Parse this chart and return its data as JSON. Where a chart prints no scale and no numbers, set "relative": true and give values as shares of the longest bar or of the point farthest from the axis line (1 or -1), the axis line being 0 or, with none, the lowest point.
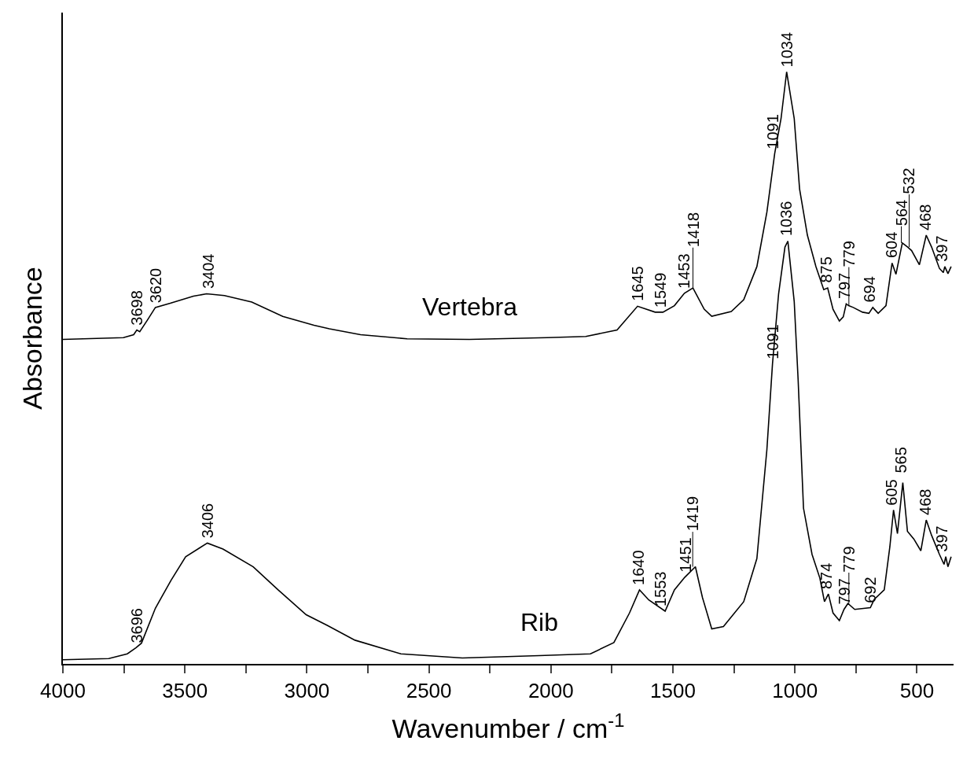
{
  "chart_data": {
    "type": "line",
    "relative": true,
    "xlabel": "Wavenumber / cm$^{-1}$",
    "ylabel": "Absorbance",
    "marker": "none",
    "line_style": "solid",
    "xlim": [
      4000,
      350
    ],
    "xticks": [
      4000,
      {
        "value": 3750,
        "label": null
      },
      3500,
      {
        "value": 3250,
        "label": null
      },
      3000,
      {
        "value": 2750,
        "label": null
      },
      2500,
      {
        "value": 2250,
        "label": null
      },
      2000,
      {
        "value": 1750,
        "label": null
      },
      1500,
      {
        "value": 1250,
        "label": null
      },
      1000,
      {
        "value": 750,
        "label": null
      },
      500
    ],
    "series": [
      {
        "name": "Vertebra",
        "color": "#000000",
        "x": [
          4000,
          3752,
          3710,
          3697,
          3685,
          3653,
          3621,
          3560,
          3465,
          3411,
          3338,
          3226,
          3099,
          2971,
          2908,
          2780,
          2589,
          2334,
          2016,
          1857,
          1729,
          1645,
          1573,
          1541,
          1494,
          1453,
          1418,
          1372,
          1341,
          1261,
          1210,
          1156,
          1115,
          1083,
          1057,
          1034,
          1003,
          981,
          949,
          914,
          882,
          866,
          844,
          818,
          802,
          790,
          780,
          761,
          723,
          697,
          681,
          659,
          627,
          611,
          602,
          586,
          560,
          538,
          522,
          490,
          462,
          440,
          408,
          392,
          386,
          373,
          360
        ],
        "values": [
          0.548,
          0.551,
          0.556,
          0.564,
          0.561,
          0.581,
          0.602,
          0.609,
          0.621,
          0.625,
          0.622,
          0.611,
          0.587,
          0.572,
          0.566,
          0.556,
          0.549,
          0.548,
          0.551,
          0.553,
          0.564,
          0.604,
          0.594,
          0.594,
          0.605,
          0.626,
          0.635,
          0.599,
          0.587,
          0.595,
          0.615,
          0.671,
          0.763,
          0.862,
          0.921,
          1.0,
          0.921,
          0.802,
          0.724,
          0.671,
          0.632,
          0.635,
          0.599,
          0.579,
          0.586,
          0.608,
          0.605,
          0.602,
          0.594,
          0.592,
          0.602,
          0.592,
          0.605,
          0.651,
          0.677,
          0.658,
          0.711,
          0.704,
          0.698,
          0.674,
          0.724,
          0.704,
          0.668,
          0.661,
          0.671,
          0.659,
          0.671
        ]
      },
      {
        "name": "Rib",
        "color": "#000000",
        "x": [
          4000,
          3812,
          3736,
          3701,
          3678,
          3621,
          3557,
          3497,
          3408,
          3344,
          3220,
          3118,
          3003,
          2917,
          2803,
          2615,
          2363,
          2048,
          1838,
          1742,
          1678,
          1637,
          1599,
          1532,
          1494,
          1452,
          1408,
          1379,
          1341,
          1293,
          1210,
          1156,
          1115,
          1092,
          1067,
          1041,
          1029,
          1003,
          987,
          965,
          930,
          898,
          879,
          863,
          844,
          818,
          799,
          783,
          755,
          691,
          675,
          634,
          611,
          596,
          580,
          558,
          539,
          513,
          484,
          462,
          440,
          408,
          389,
          382,
          373,
          360
        ],
        "values": [
          0.007,
          0.009,
          0.017,
          0.027,
          0.035,
          0.094,
          0.141,
          0.181,
          0.204,
          0.194,
          0.164,
          0.125,
          0.083,
          0.065,
          0.04,
          0.017,
          0.01,
          0.014,
          0.017,
          0.036,
          0.086,
          0.125,
          0.108,
          0.089,
          0.125,
          0.146,
          0.164,
          0.112,
          0.059,
          0.063,
          0.105,
          0.178,
          0.362,
          0.507,
          0.625,
          0.704,
          0.714,
          0.612,
          0.48,
          0.263,
          0.185,
          0.145,
          0.105,
          0.118,
          0.086,
          0.073,
          0.092,
          0.102,
          0.092,
          0.095,
          0.109,
          0.125,
          0.198,
          0.26,
          0.22,
          0.306,
          0.224,
          0.211,
          0.191,
          0.243,
          0.217,
          0.185,
          0.168,
          0.181,
          0.164,
          0.181
        ]
      }
    ],
    "annotations": [
      {
        "text": "3698",
        "x": 3698,
        "y": 0.564
      },
      {
        "text": "3620",
        "x": 3620,
        "y": 0.602
      },
      {
        "text": "3404",
        "x": 3404,
        "y": 0.625
      },
      {
        "text": "1645",
        "x": 1645,
        "y": 0.604
      },
      {
        "text": "1549",
        "x": 1549,
        "y": 0.594
      },
      {
        "text": "1453",
        "x": 1453,
        "y": 0.626
      },
      {
        "text": "1418",
        "x": 1418,
        "y": 0.635
      },
      {
        "text": "1091",
        "x": 1091,
        "y": 0.862
      },
      {
        "text": "1034",
        "x": 1034,
        "y": 1.0
      },
      {
        "text": "875",
        "x": 875,
        "y": 0.635
      },
      {
        "text": "797",
        "x": 797,
        "y": 0.608
      },
      {
        "text": "779",
        "x": 779,
        "y": 0.605
      },
      {
        "text": "694",
        "x": 694,
        "y": 0.602
      },
      {
        "text": "604",
        "x": 604,
        "y": 0.677
      },
      {
        "text": "564",
        "x": 564,
        "y": 0.711
      },
      {
        "text": "532",
        "x": 532,
        "y": 0.704
      },
      {
        "text": "468",
        "x": 468,
        "y": 0.724
      },
      {
        "text": "397",
        "x": 397,
        "y": 0.671
      },
      {
        "text": "3696",
        "x": 3696,
        "y": 0.027
      },
      {
        "text": "3406",
        "x": 3406,
        "y": 0.204
      },
      {
        "text": "1640",
        "x": 1640,
        "y": 0.125
      },
      {
        "text": "1553",
        "x": 1553,
        "y": 0.089
      },
      {
        "text": "1451",
        "x": 1451,
        "y": 0.146
      },
      {
        "text": "1419",
        "x": 1419,
        "y": 0.164
      },
      {
        "text": "1091",
        "x": 1091,
        "y": 0.507
      },
      {
        "text": "1036",
        "x": 1036,
        "y": 0.714
      },
      {
        "text": "874",
        "x": 874,
        "y": 0.118
      },
      {
        "text": "797",
        "x": 797,
        "y": 0.092
      },
      {
        "text": "779",
        "x": 779,
        "y": 0.102
      },
      {
        "text": "692",
        "x": 692,
        "y": 0.095
      },
      {
        "text": "605",
        "x": 605,
        "y": 0.26
      },
      {
        "text": "565",
        "x": 565,
        "y": 0.306
      },
      {
        "text": "468",
        "x": 468,
        "y": 0.243
      },
      {
        "text": "397",
        "x": 397,
        "y": 0.181
      }
    ]
  }
}
